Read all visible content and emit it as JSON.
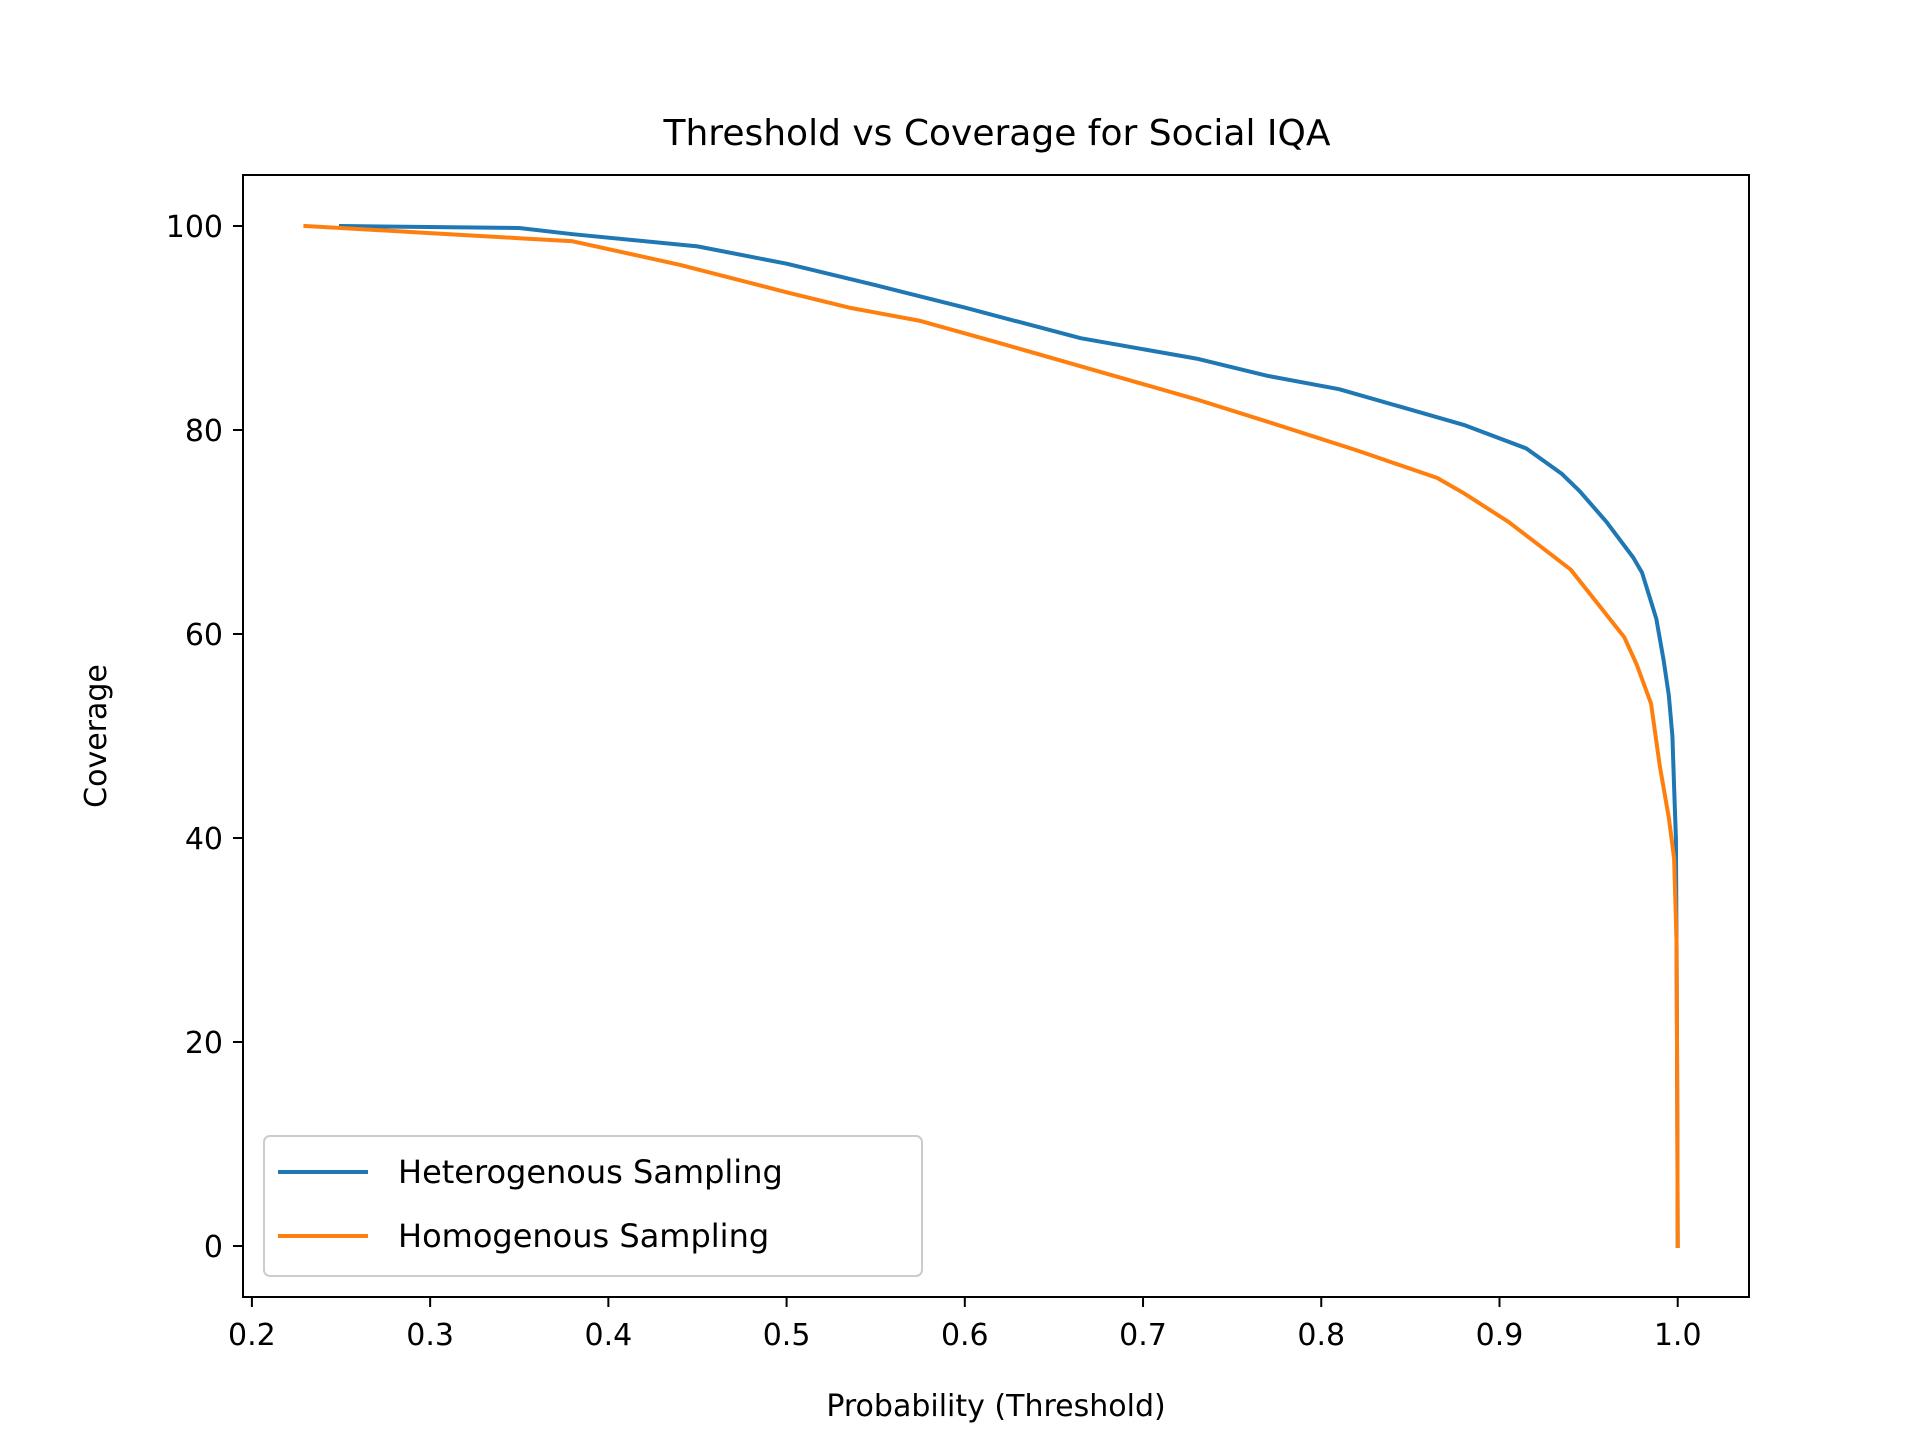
{
  "chart_data": {
    "type": "line",
    "title": "Threshold vs Coverage for Social IQA",
    "xlabel": "Probability (Threshold)",
    "ylabel": "Coverage",
    "xlim": [
      0.195,
      1.04
    ],
    "ylim": [
      -5,
      105
    ],
    "xticks": [
      0.2,
      0.3,
      0.4,
      0.5,
      0.6,
      0.7,
      0.8,
      0.9,
      1.0
    ],
    "xtick_labels": [
      "0.2",
      "0.3",
      "0.4",
      "0.5",
      "0.6",
      "0.7",
      "0.8",
      "0.9",
      "1.0"
    ],
    "yticks": [
      0,
      20,
      40,
      60,
      80,
      100
    ],
    "ytick_labels": [
      "0",
      "20",
      "40",
      "60",
      "80",
      "100"
    ],
    "grid": false,
    "legend_position": "lower-left",
    "series": [
      {
        "name": "Heterogenous Sampling",
        "color": "#1f77b4",
        "x": [
          0.25,
          0.35,
          0.38,
          0.45,
          0.5,
          0.55,
          0.6,
          0.665,
          0.73,
          0.77,
          0.81,
          0.85,
          0.88,
          0.915,
          0.935,
          0.945,
          0.96,
          0.975,
          0.98,
          0.988,
          0.992,
          0.995,
          0.997,
          0.998,
          0.999,
          0.9993,
          0.9996,
          0.9998,
          1.0
        ],
        "y": [
          100,
          99.8,
          99.2,
          98.0,
          96.3,
          94.2,
          92.0,
          89.0,
          87.0,
          85.3,
          84.0,
          82.0,
          80.5,
          78.2,
          75.7,
          74.0,
          71.0,
          67.5,
          66.0,
          61.5,
          57.5,
          54.0,
          50.0,
          45.0,
          40.0,
          30.0,
          20.0,
          10.0,
          0
        ]
      },
      {
        "name": "Homogenous Sampling",
        "color": "#ff7f0e",
        "x": [
          0.23,
          0.3,
          0.35,
          0.38,
          0.44,
          0.5,
          0.535,
          0.575,
          0.62,
          0.68,
          0.73,
          0.77,
          0.82,
          0.865,
          0.88,
          0.905,
          0.92,
          0.94,
          0.955,
          0.97,
          0.977,
          0.985,
          0.99,
          0.995,
          0.998,
          0.9993,
          0.9996,
          0.9998,
          1.0
        ],
        "y": [
          100,
          99.3,
          98.8,
          98.5,
          96.2,
          93.5,
          92.0,
          90.7,
          88.5,
          85.5,
          83.0,
          80.8,
          78.0,
          75.3,
          73.8,
          71.0,
          69.0,
          66.3,
          63.0,
          59.7,
          57.0,
          53.2,
          47.0,
          42.0,
          38.0,
          30.0,
          20.0,
          10.0,
          0
        ]
      }
    ]
  }
}
